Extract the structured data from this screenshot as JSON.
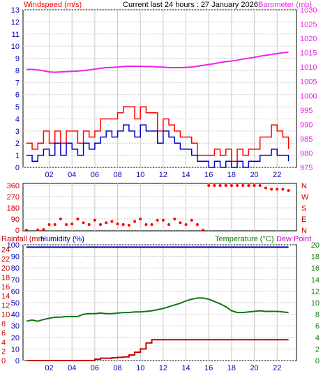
{
  "header": {
    "left_label": "Windspeed (m/s)",
    "center_label": "Current last 24 hours : 27 January 2026",
    "right_label": "Barometer (mb)"
  },
  "colors": {
    "wind_avg": "#0000cc",
    "wind_gust": "#ff0000",
    "barometer": "#ee22ee",
    "direction": "#ff0000",
    "rainfall": "#cc0000",
    "humidity": "#0000aa",
    "temperature": "#117711",
    "dewpoint": "#cc00cc",
    "grid": "#c8c8c8",
    "frame": "#000000"
  },
  "chart_data": [
    {
      "type": "line",
      "name": "wind-barometer",
      "x": [
        0,
        0.5,
        1,
        1.5,
        2,
        2.5,
        3,
        3.5,
        4,
        4.5,
        5,
        5.5,
        6,
        6.5,
        7,
        7.5,
        8,
        8.5,
        9,
        9.5,
        10,
        10.5,
        11,
        11.5,
        12,
        12.5,
        13,
        13.5,
        14,
        14.5,
        15,
        15.5,
        16,
        16.5,
        17,
        17.5,
        18,
        18.5,
        19,
        19.5,
        20,
        20.5,
        21,
        21.5,
        22,
        22.5,
        23
      ],
      "series": [
        {
          "name": "Windspeed (m/s)",
          "axis": "left",
          "values": [
            1,
            0.5,
            1,
            1.5,
            1,
            2,
            1,
            2,
            1.5,
            1,
            2,
            1.5,
            2,
            2.5,
            3,
            2.5,
            3,
            3.5,
            3,
            2.5,
            3.5,
            3,
            3,
            2,
            3,
            2.5,
            2,
            1.5,
            1.5,
            1,
            0.5,
            0.5,
            0,
            0.5,
            0,
            0.5,
            0,
            0.5,
            0,
            0.5,
            0.5,
            1,
            1,
            1.5,
            1,
            1,
            0.5
          ]
        },
        {
          "name": "gust",
          "axis": "left",
          "values": [
            2,
            1.5,
            2,
            3,
            2,
            3,
            2,
            3,
            3,
            2,
            3,
            2.5,
            3,
            4,
            4,
            4,
            4.5,
            5,
            5,
            4,
            5,
            4.5,
            4.5,
            3,
            4,
            3.5,
            3,
            2.5,
            2.5,
            2,
            1,
            1,
            1,
            1.5,
            1,
            1.5,
            0.5,
            1.5,
            1,
            1.5,
            1.5,
            2.5,
            2.5,
            3.5,
            3,
            2.5,
            1.5
          ]
        },
        {
          "name": "Barometer (mb)",
          "axis": "right",
          "values": [
            1009.2,
            1009.2,
            1009,
            1008.7,
            1008.3,
            1008.2,
            1008.3,
            1008.4,
            1008.5,
            1008.6,
            1008.8,
            1009,
            1009.3,
            1009.6,
            1009.8,
            1009.9,
            1010,
            1010.2,
            1010.3,
            1010.3,
            1010.3,
            1010.2,
            1010.2,
            1010,
            1010,
            1009.8,
            1009.8,
            1009.8,
            1009.9,
            1010,
            1010.3,
            1010.6,
            1010.9,
            1011.2,
            1011.6,
            1011.9,
            1012.1,
            1012.4,
            1012.8,
            1013.1,
            1013.4,
            1013.8,
            1014.1,
            1014.4,
            1014.7,
            1015,
            1015.2
          ]
        }
      ],
      "ylim_left": [
        0,
        13
      ],
      "yticks_left": [
        "0",
        "1",
        "2",
        "3",
        "4",
        "5",
        "6",
        "7",
        "8",
        "9",
        "10",
        "11",
        "12",
        "13"
      ],
      "ylim_right": [
        975,
        1030
      ],
      "yticks_right": [
        "975",
        "980",
        "985",
        "990",
        "995",
        "1000",
        "1005",
        "1010",
        "1015",
        "1020",
        "1025",
        "1030"
      ],
      "xticks": [
        "02",
        "04",
        "06",
        "08",
        "10",
        "12",
        "14",
        "16",
        "18",
        "20",
        "22"
      ],
      "grid": true
    },
    {
      "type": "scatter",
      "name": "wind-direction",
      "x": [
        0,
        1,
        1.5,
        2,
        2.5,
        3,
        3.5,
        4,
        4.5,
        5,
        5.5,
        6,
        6.5,
        7,
        7.5,
        8,
        8.5,
        9,
        9.5,
        10,
        10.5,
        11,
        11.5,
        12,
        12.5,
        13,
        13.5,
        14,
        14.5,
        15,
        15.5,
        16,
        16.5,
        17,
        17.5,
        18,
        18.5,
        19,
        19.5,
        20,
        20.5,
        21,
        21.5,
        22,
        22.5,
        23
      ],
      "values": [
        0,
        2,
        5,
        45,
        45,
        90,
        45,
        50,
        90,
        60,
        45,
        80,
        45,
        60,
        70,
        50,
        45,
        40,
        70,
        90,
        45,
        45,
        80,
        80,
        45,
        90,
        60,
        45,
        80,
        45,
        0,
        360,
        360,
        360,
        360,
        360,
        360,
        360,
        360,
        360,
        360,
        340,
        330,
        330,
        330,
        320
      ],
      "ylim": [
        0,
        360
      ],
      "yticks_left": [
        "0",
        "90",
        "180",
        "270",
        "360"
      ],
      "yticks_right": [
        "N",
        "E",
        "S",
        "W",
        "N"
      ]
    },
    {
      "type": "line",
      "name": "rain-humidity-temperature",
      "x": [
        0,
        0.5,
        1,
        1.5,
        2,
        2.5,
        3,
        3.5,
        4,
        4.5,
        5,
        5.5,
        6,
        6.5,
        7,
        7.5,
        8,
        8.5,
        9,
        9.5,
        10,
        10.5,
        11,
        11.5,
        12,
        12.5,
        13,
        13.5,
        14,
        14.5,
        15,
        15.5,
        16,
        16.5,
        17,
        17.5,
        18,
        18.5,
        19,
        19.5,
        20,
        20.5,
        21,
        21.5,
        22,
        22.5,
        23
      ],
      "series": [
        {
          "name": "Rainfall (mm)",
          "axis": "left_rain",
          "values": [
            0,
            0,
            0,
            0,
            0,
            0,
            0,
            0,
            0,
            0,
            0,
            0,
            0.3,
            0.5,
            0.5,
            0.6,
            0.7,
            0.8,
            1.2,
            1.8,
            2.5,
            3.8,
            4.5,
            4.5,
            4.5,
            4.5,
            4.5,
            4.5,
            4.5,
            4.5,
            4.5,
            4.5,
            4.5,
            4.5,
            4.5,
            4.5,
            4.5,
            4.5,
            4.5,
            4.5,
            4.5,
            4.5,
            4.5,
            4.5,
            4.5,
            4.5,
            4.5
          ]
        },
        {
          "name": "Humidity (%)",
          "axis": "left_hum",
          "values": [
            98,
            98,
            98,
            98,
            98,
            98,
            98,
            98,
            98,
            98,
            98,
            98,
            98,
            98,
            98,
            98,
            98,
            98,
            98,
            98,
            98,
            98,
            98,
            98,
            98,
            98,
            98,
            98,
            98,
            98,
            98,
            98,
            98,
            98,
            98,
            98,
            98,
            98,
            98,
            98,
            98,
            98,
            98,
            98,
            98,
            98,
            98
          ]
        },
        {
          "name": "Temperature (°C)",
          "axis": "right",
          "values": [
            6.8,
            7,
            6.8,
            7.1,
            7.3,
            7.5,
            7.5,
            7.6,
            7.6,
            7.6,
            8,
            8.1,
            8.1,
            8.2,
            8.1,
            8.1,
            8.2,
            8.3,
            8.3,
            8.4,
            8.4,
            8.5,
            8.6,
            8.8,
            9,
            9.3,
            9.6,
            9.9,
            10.3,
            10.6,
            10.8,
            10.8,
            10.6,
            10.2,
            9.8,
            9.3,
            8.6,
            8.3,
            8.3,
            8.4,
            8.5,
            8.6,
            8.5,
            8.5,
            8.5,
            8.4,
            8.3
          ]
        }
      ],
      "yticks_rain": [
        "0",
        "2",
        "4",
        "6",
        "8",
        "10",
        "12",
        "14",
        "16",
        "18",
        "20",
        "22",
        "24"
      ],
      "yticks_hum": [
        "0",
        "10",
        "20",
        "30",
        "40",
        "50",
        "60",
        "70",
        "80",
        "90",
        "100"
      ],
      "yticks_temp": [
        "0",
        "2",
        "4",
        "6",
        "8",
        "10",
        "12",
        "14",
        "16",
        "18",
        "20"
      ],
      "ylim_rain": [
        0,
        25
      ],
      "ylim_hum": [
        0,
        100
      ],
      "ylim_temp": [
        0,
        20
      ],
      "label_rain": "Rainfall (mm",
      "label_humidity": "Humidity (%)",
      "label_temp": "Temperature (°C)",
      "label_dew": "Dew Point",
      "xticks": [
        "02",
        "04",
        "06",
        "08",
        "10",
        "12",
        "14",
        "16",
        "18",
        "20",
        "22"
      ],
      "grid": true
    }
  ]
}
